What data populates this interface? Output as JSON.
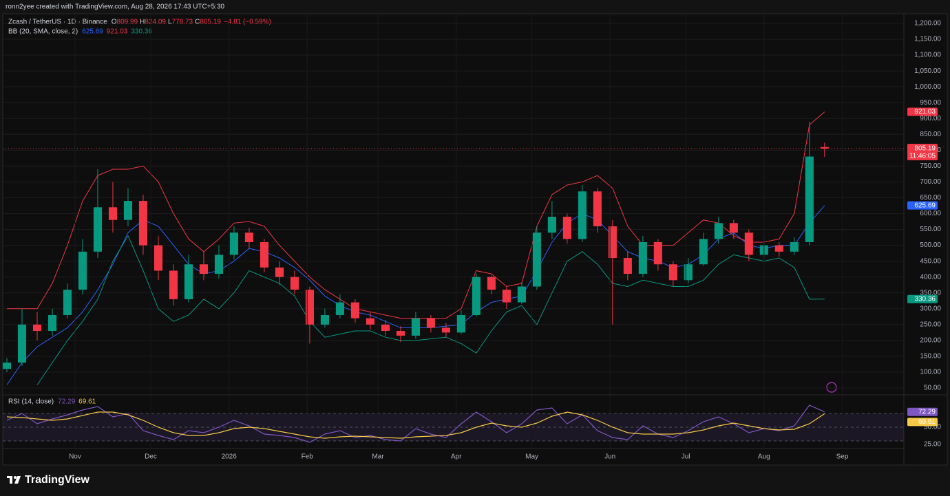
{
  "watermark": "ronn2yee created with TradingView.com, Aug 28, 2026 17:43 UTC+5:30",
  "brand": "TradingView",
  "chart_data": [
    {
      "type": "candlestick",
      "title": "Zcash / TetherUS · 1D · Binance",
      "legend_keys": [
        "O",
        "H",
        "L",
        "C"
      ],
      "change": "−4.81 (−0.59%)",
      "countdown": "11:46:05",
      "up_color": "#089981",
      "down_color": "#f23645",
      "categories": [
        null,
        null,
        null,
        null,
        null,
        null,
        null,
        null,
        null,
        null,
        null,
        null,
        null,
        null,
        null,
        null,
        null,
        null,
        null,
        null,
        null,
        null,
        null,
        null,
        null,
        null,
        null,
        null,
        null,
        null,
        null,
        null,
        null,
        null,
        null,
        null,
        null,
        null,
        null,
        null,
        null,
        null,
        null,
        null,
        null,
        null,
        null,
        null,
        null,
        null,
        null,
        null,
        null,
        null,
        null
      ],
      "open": [
        110,
        130,
        250,
        230,
        280,
        360,
        480,
        620,
        580,
        640,
        500,
        420,
        330,
        440,
        410,
        470,
        540,
        510,
        430,
        400,
        360,
        250,
        280,
        320,
        270,
        250,
        230,
        215,
        270,
        240,
        225,
        280,
        400,
        360,
        320,
        370,
        540,
        590,
        520,
        670,
        560,
        460,
        410,
        510,
        440,
        390,
        440,
        520,
        570,
        540,
        470,
        500,
        480,
        510,
        809.99
      ],
      "high": [
        145,
        300,
        290,
        300,
        380,
        520,
        740,
        700,
        680,
        660,
        530,
        440,
        470,
        480,
        500,
        560,
        555,
        520,
        450,
        420,
        370,
        300,
        345,
        330,
        290,
        265,
        245,
        290,
        280,
        255,
        295,
        410,
        405,
        370,
        385,
        560,
        640,
        600,
        690,
        680,
        580,
        480,
        530,
        520,
        450,
        460,
        540,
        590,
        580,
        550,
        520,
        510,
        525,
        890,
        824.09
      ],
      "low": [
        100,
        120,
        200,
        215,
        270,
        345,
        460,
        540,
        560,
        470,
        390,
        310,
        320,
        390,
        395,
        455,
        490,
        415,
        375,
        345,
        190,
        240,
        270,
        255,
        235,
        215,
        195,
        205,
        225,
        210,
        220,
        275,
        345,
        300,
        315,
        360,
        520,
        505,
        510,
        540,
        250,
        390,
        400,
        420,
        370,
        380,
        435,
        505,
        520,
        450,
        460,
        465,
        470,
        500,
        778.73
      ],
      "close": [
        130,
        250,
        230,
        280,
        360,
        480,
        620,
        580,
        640,
        500,
        420,
        330,
        440,
        410,
        470,
        540,
        510,
        430,
        400,
        360,
        250,
        280,
        320,
        270,
        250,
        230,
        215,
        270,
        240,
        225,
        280,
        400,
        360,
        320,
        370,
        540,
        590,
        520,
        670,
        560,
        460,
        410,
        510,
        440,
        390,
        440,
        520,
        570,
        540,
        470,
        500,
        480,
        510,
        780,
        805.19
      ],
      "overlay_title": "BB (20, SMA, close, 2)",
      "overlays": [
        {
          "color": "#2962ff",
          "values": [
            60,
            130,
            180,
            210,
            240,
            290,
            360,
            440,
            540,
            580,
            560,
            500,
            440,
            410,
            420,
            450,
            490,
            480,
            460,
            430,
            390,
            340,
            310,
            290,
            280,
            260,
            240,
            240,
            240,
            245,
            250,
            290,
            320,
            330,
            340,
            420,
            510,
            570,
            600,
            580,
            530,
            480,
            460,
            450,
            430,
            440,
            470,
            520,
            540,
            500,
            490,
            500,
            500,
            570,
            625.69
          ]
        },
        {
          "color": "#f23645",
          "values": [
            300,
            300,
            300,
            380,
            500,
            640,
            720,
            740,
            740,
            750,
            700,
            600,
            520,
            480,
            520,
            570,
            575,
            560,
            500,
            450,
            400,
            360,
            330,
            300,
            290,
            280,
            270,
            270,
            270,
            270,
            300,
            420,
            410,
            370,
            380,
            560,
            660,
            690,
            700,
            720,
            680,
            560,
            500,
            500,
            500,
            540,
            580,
            570,
            530,
            510,
            510,
            520,
            600,
            880,
            921.03
          ]
        },
        {
          "color": "#089981",
          "values": [
            null,
            null,
            60,
            130,
            200,
            260,
            330,
            450,
            530,
            420,
            300,
            260,
            280,
            330,
            300,
            350,
            420,
            400,
            380,
            340,
            260,
            210,
            220,
            230,
            230,
            210,
            200,
            200,
            205,
            210,
            190,
            160,
            230,
            290,
            310,
            250,
            350,
            450,
            480,
            440,
            380,
            370,
            390,
            380,
            370,
            370,
            390,
            440,
            470,
            460,
            450,
            460,
            430,
            330,
            330.36
          ]
        }
      ],
      "xlim": [
        0,
        59.1
      ],
      "ylim": [
        32.6,
        1226
      ],
      "yticks": [
        {
          "value": 50,
          "label": "50.00"
        },
        {
          "value": 100,
          "label": "100.00"
        },
        {
          "value": 150,
          "label": "150.00"
        },
        {
          "value": 200,
          "label": "200.00"
        },
        {
          "value": 250,
          "label": "250.00"
        },
        {
          "value": 300,
          "label": "300.00"
        },
        {
          "value": 350,
          "label": "350.00"
        },
        {
          "value": 400,
          "label": "400.00"
        },
        {
          "value": 450,
          "label": "450.00"
        },
        {
          "value": 500,
          "label": "500.00"
        },
        {
          "value": 550,
          "label": "550.00"
        },
        {
          "value": 600,
          "label": "600.00"
        },
        {
          "value": 650,
          "label": "650.00"
        },
        {
          "value": 700,
          "label": "700.00"
        },
        {
          "value": 750,
          "label": "750.00"
        },
        {
          "value": 800,
          "label": "800.00"
        },
        {
          "value": 850,
          "label": "850.00"
        },
        {
          "value": 900,
          "label": "900.00"
        },
        {
          "value": 950,
          "label": "950.00"
        },
        {
          "value": 1000,
          "label": "1,000.00"
        },
        {
          "value": 1050,
          "label": "1,050.00"
        },
        {
          "value": 1100,
          "label": "1,100.00"
        },
        {
          "value": 1150,
          "label": "1,150.00"
        },
        {
          "value": 1200,
          "label": "1,200.00"
        }
      ]
    },
    {
      "type": "line",
      "title": "RSI (14, close)",
      "categories": [
        null,
        null,
        null,
        null,
        null,
        null,
        null,
        null,
        null,
        null,
        null,
        null,
        null,
        null,
        null,
        null,
        null,
        null,
        null,
        null,
        null,
        null,
        null,
        null,
        null,
        null,
        null,
        null,
        null,
        null,
        null,
        null,
        null,
        null,
        null,
        null,
        null,
        null,
        null,
        null,
        null,
        null,
        null,
        null,
        null,
        null,
        null,
        null,
        null,
        null,
        null,
        null,
        null,
        null,
        null
      ],
      "series": [
        {
          "color": "#7e57c2",
          "values": [
            60,
            70,
            55,
            62,
            68,
            75,
            80,
            65,
            70,
            45,
            38,
            32,
            45,
            42,
            50,
            60,
            52,
            40,
            38,
            35,
            28,
            40,
            45,
            35,
            38,
            32,
            30,
            48,
            40,
            35,
            55,
            72,
            58,
            42,
            55,
            75,
            78,
            55,
            68,
            45,
            35,
            32,
            52,
            40,
            35,
            45,
            58,
            65,
            55,
            42,
            48,
            45,
            52,
            82,
            72.29
          ]
        },
        {
          "color": "#f7c948",
          "values": [
            65,
            64,
            62,
            60,
            62,
            67,
            72,
            72,
            68,
            60,
            50,
            42,
            38,
            38,
            42,
            48,
            50,
            48,
            44,
            40,
            36,
            34,
            36,
            37,
            36,
            35,
            34,
            36,
            37,
            38,
            42,
            50,
            56,
            52,
            50,
            56,
            66,
            72,
            68,
            60,
            50,
            42,
            40,
            40,
            40,
            42,
            46,
            52,
            56,
            52,
            48,
            46,
            47,
            55,
            69.61
          ]
        }
      ],
      "levels": [
        30,
        50,
        70
      ],
      "xlim": [
        0,
        59.1
      ],
      "ylim": [
        -1,
        94
      ],
      "xticks": [
        {
          "value": 4.5,
          "label": "Nov"
        },
        {
          "value": 9.5,
          "label": "Dec"
        },
        {
          "value": 14.67,
          "label": "2026"
        },
        {
          "value": 19.83,
          "label": "Feb"
        },
        {
          "value": 24.5,
          "label": "Mar"
        },
        {
          "value": 29.67,
          "label": "Apr"
        },
        {
          "value": 34.67,
          "label": "May"
        },
        {
          "value": 39.83,
          "label": "Jun"
        },
        {
          "value": 44.83,
          "label": "Jul"
        },
        {
          "value": 50,
          "label": "Aug"
        },
        {
          "value": 55.17,
          "label": "Sep"
        }
      ],
      "yticks": [
        {
          "value": 25,
          "label": "25.00"
        },
        {
          "value": 50,
          "label": "50.00"
        }
      ]
    }
  ]
}
